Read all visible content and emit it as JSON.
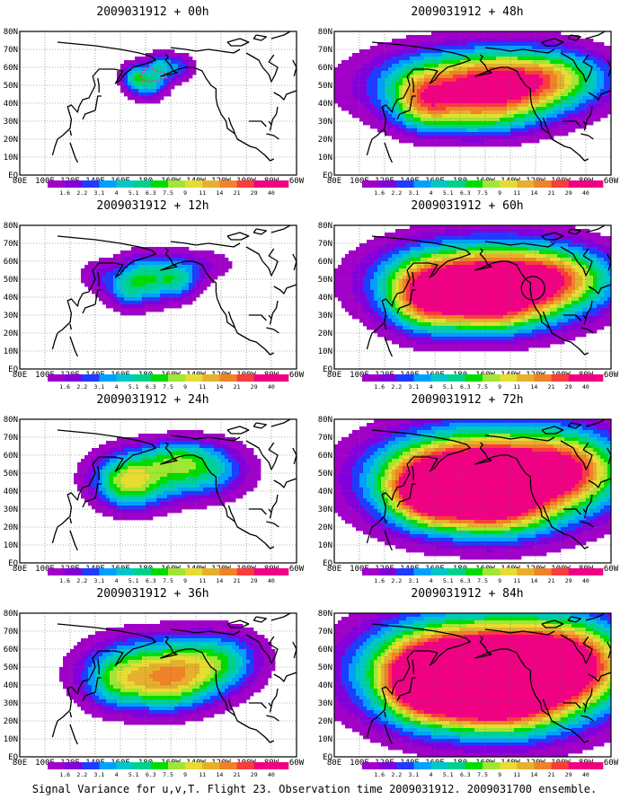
{
  "figure": {
    "caption": "Signal Variance for u,v,T. Flight 23. Observation time 2009031912. 2009031700 ensemble."
  },
  "panels": [
    {
      "title": "2009031912 + 00h",
      "lead_h": 0
    },
    {
      "title": "2009031912 + 12h",
      "lead_h": 12
    },
    {
      "title": "2009031912 + 24h",
      "lead_h": 24
    },
    {
      "title": "2009031912 + 36h",
      "lead_h": 36
    },
    {
      "title": "2009031912 + 48h",
      "lead_h": 48
    },
    {
      "title": "2009031912 + 60h",
      "lead_h": 60
    },
    {
      "title": "2009031912 + 72h",
      "lead_h": 72
    },
    {
      "title": "2009031912 + 84h",
      "lead_h": 84
    }
  ],
  "map": {
    "lon_labels": [
      "80E",
      "100E",
      "120E",
      "140E",
      "160E",
      "180",
      "160W",
      "140W",
      "120W",
      "100W",
      "80W",
      "60W"
    ],
    "lat_labels": [
      "80N",
      "70N",
      "60N",
      "50N",
      "40N",
      "30N",
      "20N",
      "10N",
      "EQ"
    ]
  },
  "colorbar": {
    "levels": [
      "1.6",
      "2.2",
      "3.1",
      "4",
      "5.1",
      "6.3",
      "7.5",
      "9",
      "11",
      "14",
      "21",
      "29",
      "40"
    ],
    "colors": [
      "#a000c8",
      "#8200dc",
      "#1e3cff",
      "#00a0ff",
      "#00c8c8",
      "#00d28c",
      "#00dc00",
      "#a0e632",
      "#e6dc32",
      "#e6af2d",
      "#f08228",
      "#fa3c3c",
      "#f00082"
    ]
  },
  "highlights": {
    "flight_track_panel_lead_h": 0,
    "circle_panel_lead_h": 60,
    "circle_center": {
      "lon": "122W",
      "lat": "45N"
    }
  }
}
